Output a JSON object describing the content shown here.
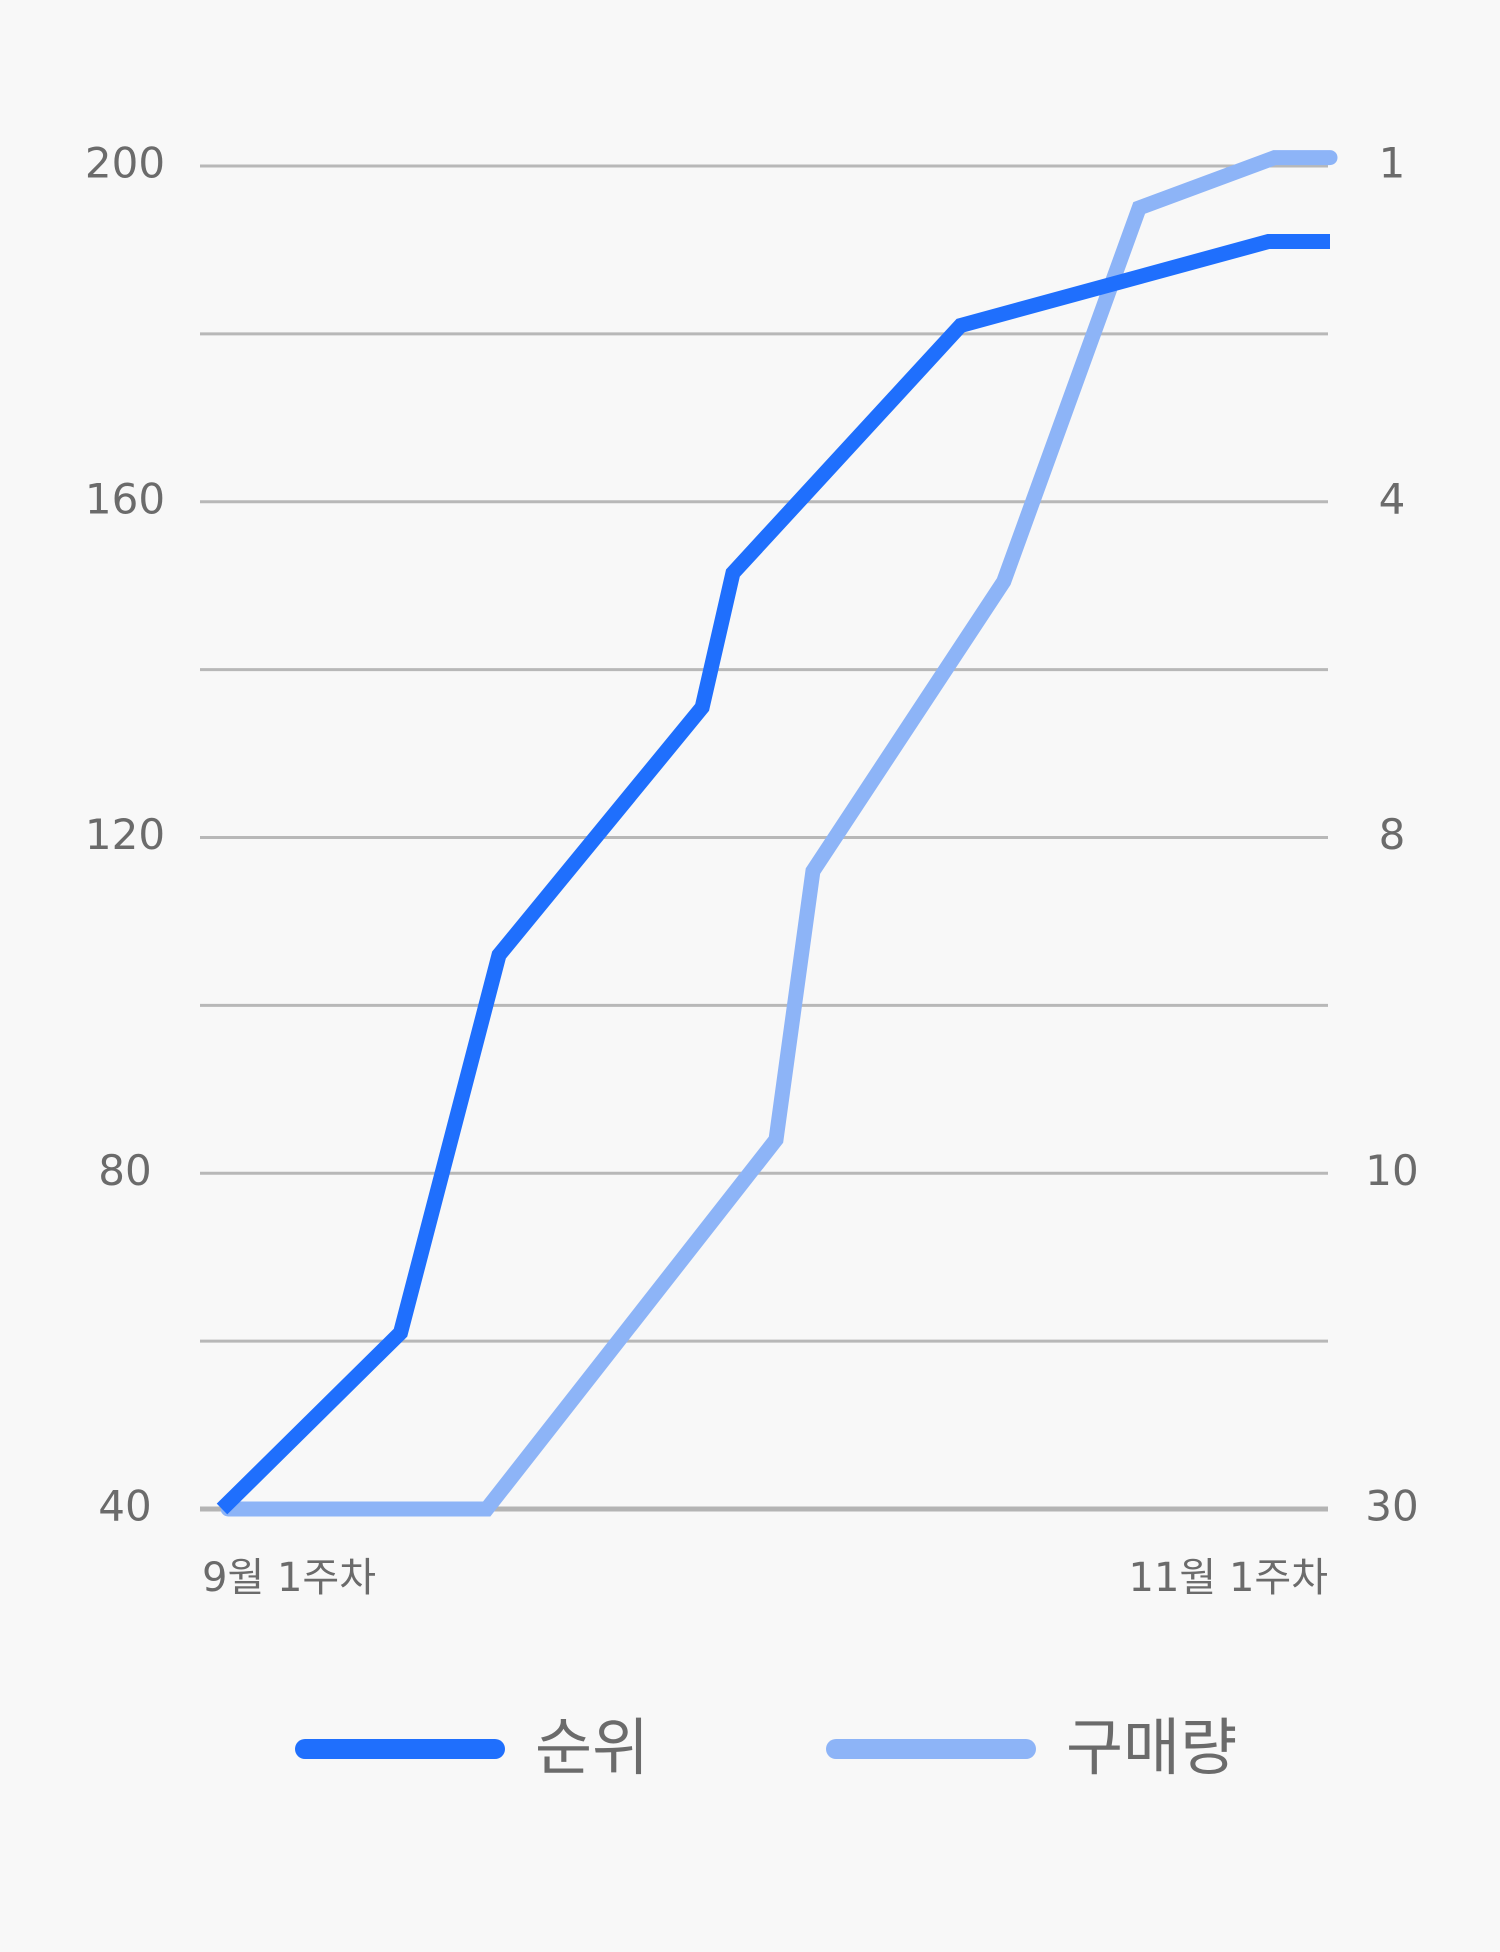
{
  "chart_data": {
    "type": "line",
    "xlim": [
      0,
      9
    ],
    "xticks": [
      {
        "value": 0,
        "label": "9월 1주차"
      },
      {
        "value": 9,
        "label": "11월 1주차"
      }
    ],
    "ylim": [
      40,
      200
    ],
    "yticks": [
      40,
      80,
      120,
      160,
      200
    ],
    "y2ticks": [
      30,
      10,
      8,
      4,
      1
    ],
    "grid": true,
    "series": [
      {
        "name": "순위",
        "color": "#1f6ffd",
        "x": [
          0,
          1.45,
          2.25,
          3.9,
          4.15,
          6,
          8.5,
          9
        ],
        "values": [
          40,
          61,
          106,
          135.5,
          151.5,
          181,
          191,
          191
        ]
      },
      {
        "name": "구매량",
        "color": "#8db4f7",
        "x": [
          0.05,
          2.15,
          4.5,
          4.8,
          6.35,
          7.45,
          8.55,
          9
        ],
        "values": [
          40,
          40,
          84,
          116,
          150.5,
          195,
          201,
          201
        ]
      }
    ]
  }
}
